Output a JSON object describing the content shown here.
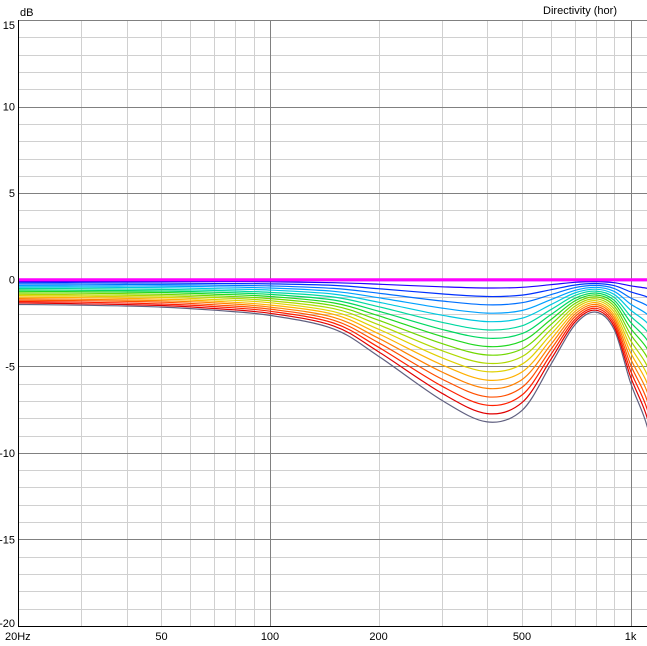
{
  "chart_data": {
    "type": "line",
    "title": "Directivity (hor)",
    "xlabel": "",
    "ylabel": "dB",
    "x_scale": "log",
    "xlim": [
      20,
      1200
    ],
    "ylim": [
      -20,
      15
    ],
    "grid": true,
    "x_ticks": [
      {
        "value": 20,
        "label": "20Hz"
      },
      {
        "value": 50,
        "label": "50"
      },
      {
        "value": 100,
        "label": "100"
      },
      {
        "value": 200,
        "label": "200"
      },
      {
        "value": 500,
        "label": "500"
      },
      {
        "value": 1000,
        "label": "1k"
      }
    ],
    "y_ticks": [
      {
        "value": 15,
        "label": "15"
      },
      {
        "value": 10,
        "label": "10"
      },
      {
        "value": 5,
        "label": "5"
      },
      {
        "value": 0,
        "label": "0"
      },
      {
        "value": -5,
        "label": "-5"
      },
      {
        "value": -10,
        "label": "-10"
      },
      {
        "value": -15,
        "label": "-15"
      },
      {
        "value": -20,
        "label": "-20"
      }
    ],
    "x": [
      20,
      30,
      50,
      70,
      100,
      150,
      200,
      300,
      400,
      500,
      600,
      700,
      800,
      900,
      1000,
      1100,
      1200
    ],
    "series": [
      {
        "color": "#ff00ff",
        "values": [
          0,
          0,
          0,
          0,
          0,
          0,
          0,
          0,
          0,
          0,
          0,
          0,
          0,
          0,
          0,
          0,
          0
        ]
      },
      {
        "color": "#8000ff",
        "values": [
          -0.05,
          -0.05,
          -0.05,
          -0.05,
          -0.05,
          -0.05,
          -0.05,
          -0.05,
          -0.05,
          -0.05,
          -0.05,
          -0.05,
          -0.05,
          -0.05,
          -0.05,
          -0.05,
          -0.05
        ]
      },
      {
        "color": "#2000ff",
        "values": [
          -0.1,
          -0.1,
          -0.1,
          -0.1,
          -0.12,
          -0.17,
          -0.26,
          -0.41,
          -0.48,
          -0.44,
          -0.29,
          -0.15,
          -0.11,
          -0.17,
          -0.35,
          -0.48,
          -0.65
        ]
      },
      {
        "color": "#0030ff",
        "values": [
          -0.17,
          -0.17,
          -0.19,
          -0.21,
          -0.24,
          -0.33,
          -0.52,
          -0.82,
          -0.97,
          -0.89,
          -0.58,
          -0.31,
          -0.22,
          -0.34,
          -0.7,
          -0.96,
          -1.3
        ]
      },
      {
        "color": "#0070ff",
        "values": [
          -0.25,
          -0.26,
          -0.28,
          -0.31,
          -0.36,
          -0.5,
          -0.78,
          -1.23,
          -1.45,
          -1.33,
          -0.87,
          -0.46,
          -0.33,
          -0.5,
          -1.05,
          -1.44,
          -1.95
        ]
      },
      {
        "color": "#00a0ff",
        "values": [
          -0.34,
          -0.35,
          -0.37,
          -0.41,
          -0.48,
          -0.67,
          -1.04,
          -1.64,
          -1.93,
          -1.78,
          -1.16,
          -0.62,
          -0.44,
          -0.67,
          -1.4,
          -1.92,
          -2.6
        ]
      },
      {
        "color": "#00c8e0",
        "values": [
          -0.42,
          -0.43,
          -0.46,
          -0.52,
          -0.6,
          -0.83,
          -1.3,
          -2.05,
          -2.42,
          -2.22,
          -1.45,
          -0.77,
          -0.55,
          -0.84,
          -1.75,
          -2.4,
          -3.25
        ]
      },
      {
        "color": "#00d8a0",
        "values": [
          -0.5,
          -0.52,
          -0.56,
          -0.62,
          -0.73,
          -1.0,
          -1.56,
          -2.46,
          -2.9,
          -2.66,
          -1.74,
          -0.92,
          -0.66,
          -1.01,
          -2.1,
          -2.88,
          -3.9
        ]
      },
      {
        "color": "#00d860",
        "values": [
          -0.59,
          -0.61,
          -0.65,
          -0.72,
          -0.85,
          -1.17,
          -1.82,
          -2.87,
          -3.38,
          -3.11,
          -2.03,
          -1.08,
          -0.77,
          -1.18,
          -2.45,
          -3.36,
          -4.55
        ]
      },
      {
        "color": "#20d820",
        "values": [
          -0.67,
          -0.69,
          -0.74,
          -0.83,
          -0.97,
          -1.34,
          -2.08,
          -3.28,
          -3.86,
          -3.55,
          -2.32,
          -1.23,
          -0.88,
          -1.34,
          -2.8,
          -3.84,
          -5.2
        ]
      },
      {
        "color": "#70d800",
        "values": [
          -0.76,
          -0.78,
          -0.84,
          -0.93,
          -1.09,
          -1.5,
          -2.34,
          -3.69,
          -4.35,
          -4.0,
          -2.61,
          -1.38,
          -0.99,
          -1.51,
          -3.15,
          -4.32,
          -5.85
        ]
      },
      {
        "color": "#b0d800",
        "values": [
          -0.84,
          -0.87,
          -0.93,
          -1.03,
          -1.21,
          -1.67,
          -2.6,
          -4.1,
          -4.83,
          -4.44,
          -2.9,
          -1.54,
          -1.1,
          -1.68,
          -3.5,
          -4.8,
          -6.5
        ]
      },
      {
        "color": "#e0d000",
        "values": [
          -0.92,
          -0.95,
          -1.02,
          -1.14,
          -1.33,
          -1.84,
          -2.86,
          -4.51,
          -5.31,
          -4.88,
          -3.19,
          -1.69,
          -1.21,
          -1.85,
          -3.85,
          -5.28,
          -7.15
        ]
      },
      {
        "color": "#ffb000",
        "values": [
          -1.01,
          -1.04,
          -1.12,
          -1.24,
          -1.46,
          -2.0,
          -3.12,
          -4.92,
          -5.8,
          -5.33,
          -3.48,
          -1.85,
          -1.32,
          -2.02,
          -4.2,
          -5.76,
          -7.8
        ]
      },
      {
        "color": "#ff8000",
        "values": [
          -1.09,
          -1.13,
          -1.21,
          -1.34,
          -1.58,
          -2.17,
          -3.38,
          -5.33,
          -6.28,
          -5.77,
          -3.77,
          -2.0,
          -1.43,
          -2.18,
          -4.55,
          -6.24,
          -8.45
        ]
      },
      {
        "color": "#ff5000",
        "values": [
          -1.18,
          -1.21,
          -1.3,
          -1.45,
          -1.7,
          -2.34,
          -3.64,
          -5.74,
          -6.76,
          -6.22,
          -4.06,
          -2.15,
          -1.54,
          -2.35,
          -4.9,
          -6.72,
          -9.1
        ]
      },
      {
        "color": "#ff2000",
        "values": [
          -1.26,
          -1.3,
          -1.4,
          -1.55,
          -1.82,
          -2.5,
          -3.9,
          -6.15,
          -7.25,
          -6.66,
          -4.35,
          -2.31,
          -1.65,
          -2.52,
          -5.25,
          -7.2,
          -9.75
        ]
      },
      {
        "color": "#e00000",
        "values": [
          -1.34,
          -1.39,
          -1.49,
          -1.66,
          -1.94,
          -2.67,
          -4.16,
          -6.56,
          -7.73,
          -7.1,
          -4.64,
          -2.46,
          -1.76,
          -2.69,
          -5.6,
          -7.68,
          -10.4
        ]
      },
      {
        "color": "#606080",
        "values": [
          -1.43,
          -1.47,
          -1.58,
          -1.76,
          -2.06,
          -2.84,
          -4.42,
          -6.97,
          -8.21,
          -7.55,
          -4.93,
          -2.62,
          -1.87,
          -2.86,
          -5.95,
          -8.16,
          -11.05
        ]
      }
    ]
  }
}
